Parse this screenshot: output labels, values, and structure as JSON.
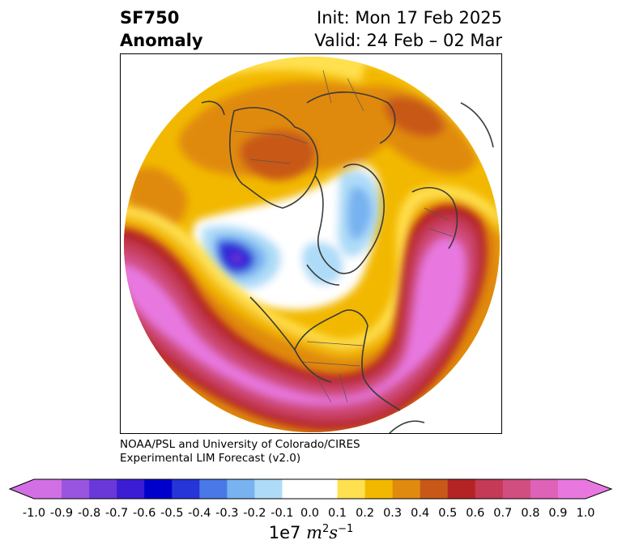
{
  "title": {
    "variable": "SF750",
    "kind": "Anomaly",
    "init": "Init: Mon 17 Feb 2025",
    "valid": "Valid: 24 Feb – 02 Mar"
  },
  "credit": {
    "line1": "NOAA/PSL and University of Colorado/CIRES",
    "line2": "Experimental LIM Forecast (v2.0)"
  },
  "colorbar": {
    "ticks": [
      "-1.0",
      "-0.9",
      "-0.8",
      "-0.7",
      "-0.6",
      "-0.5",
      "-0.4",
      "-0.3",
      "-0.2",
      "-0.1",
      "0.0",
      "0.1",
      "0.2",
      "0.3",
      "0.4",
      "0.5",
      "0.6",
      "0.7",
      "0.8",
      "0.9",
      "1.0"
    ],
    "colors": [
      "#d36fe5",
      "#9a55e0",
      "#6a38d8",
      "#3a1dd4",
      "#0000cc",
      "#2535d8",
      "#4a78e6",
      "#78b2f0",
      "#aedcf8",
      "#ffffff",
      "#ffffff",
      "#ffe050",
      "#f2b800",
      "#e08a10",
      "#c85818",
      "#b42424",
      "#c53a56",
      "#d14e80",
      "#dd62b8",
      "#e878e0"
    ],
    "extend": "both",
    "units_prefix": "1e7",
    "units_base": "m",
    "units_exp1": "2",
    "units_base2": "s",
    "units_exp2": "−1"
  }
}
